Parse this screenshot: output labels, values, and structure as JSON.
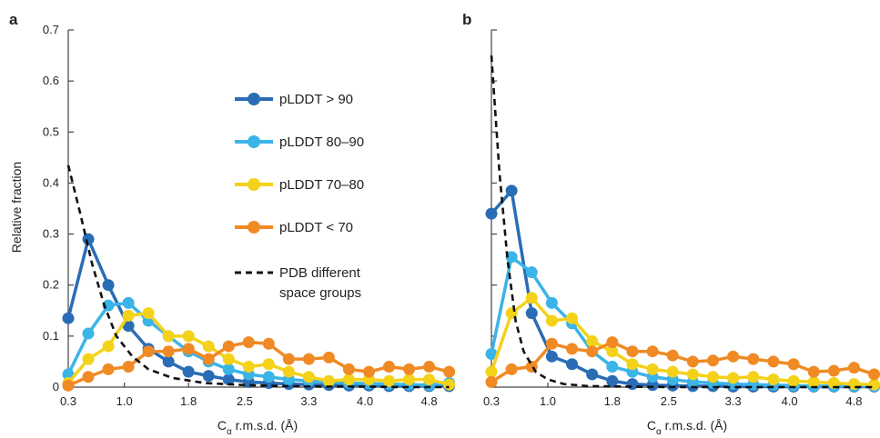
{
  "colors": {
    "series": [
      "#2a6db5",
      "#3bb4e8",
      "#f4d21a",
      "#f08a24"
    ],
    "reference": "#111111",
    "axis": "#444444"
  },
  "legend": {
    "entries": [
      "pLDDT > 90",
      "pLDDT 80–90",
      "pLDDT 70–80",
      "pLDDT < 70"
    ],
    "reference_line1": "PDB different",
    "reference_line2": "space groups"
  },
  "chart_data": [
    {
      "type": "line",
      "panel": "a",
      "xlabel_main": "C",
      "xlabel_sub": "α",
      "xlabel_rest": " r.m.s.d. (Å)",
      "ylabel": "Relative fraction",
      "xlim": [
        0.3,
        5.1
      ],
      "ylim": [
        0,
        0.7
      ],
      "xticks": [
        0.3,
        1.0,
        1.8,
        2.5,
        3.3,
        4.0,
        4.8
      ],
      "xtick_labels": [
        "0.3",
        "1.0",
        "1.8",
        "2.5",
        "3.3",
        "4.0",
        "4.8"
      ],
      "yticks": [
        0,
        0.1,
        0.2,
        0.3,
        0.4,
        0.5,
        0.6,
        0.7
      ],
      "ytick_labels": [
        "0",
        "0.1",
        "0.2",
        "0.3",
        "0.4",
        "0.5",
        "0.6",
        "0.7"
      ],
      "x": [
        0.3,
        0.55,
        0.8,
        1.05,
        1.3,
        1.55,
        1.8,
        2.05,
        2.3,
        2.55,
        2.8,
        3.05,
        3.3,
        3.55,
        3.8,
        4.05,
        4.3,
        4.55,
        4.8,
        5.05
      ],
      "series": [
        {
          "name": "pLDDT > 90",
          "values": [
            0.135,
            0.29,
            0.2,
            0.12,
            0.075,
            0.05,
            0.03,
            0.022,
            0.015,
            0.01,
            0.008,
            0.006,
            0.005,
            0.004,
            0.003,
            0.003,
            0.002,
            0.002,
            0.002,
            0.002
          ]
        },
        {
          "name": "pLDDT 80–90",
          "values": [
            0.025,
            0.105,
            0.16,
            0.165,
            0.13,
            0.1,
            0.07,
            0.05,
            0.035,
            0.025,
            0.02,
            0.015,
            0.012,
            0.01,
            0.008,
            0.007,
            0.006,
            0.005,
            0.004,
            0.008
          ]
        },
        {
          "name": "pLDDT 70–80",
          "values": [
            0.008,
            0.055,
            0.08,
            0.14,
            0.145,
            0.1,
            0.1,
            0.08,
            0.055,
            0.04,
            0.045,
            0.03,
            0.02,
            0.012,
            0.015,
            0.015,
            0.012,
            0.015,
            0.015,
            0.005
          ]
        },
        {
          "name": "pLDDT < 70",
          "values": [
            0.003,
            0.02,
            0.035,
            0.04,
            0.07,
            0.07,
            0.075,
            0.055,
            0.08,
            0.088,
            0.085,
            0.055,
            0.055,
            0.058,
            0.035,
            0.03,
            0.04,
            0.035,
            0.04,
            0.03
          ]
        }
      ],
      "reference": {
        "name": "PDB different space groups",
        "x": [
          0.3,
          0.45,
          0.6,
          0.75,
          0.9,
          1.1,
          1.3,
          1.6,
          2.0,
          2.5,
          3.0,
          3.5,
          4.0,
          4.5,
          5.05
        ],
        "values": [
          0.435,
          0.34,
          0.24,
          0.16,
          0.1,
          0.06,
          0.035,
          0.018,
          0.008,
          0.004,
          0.002,
          0.001,
          0.001,
          0.0,
          0.0
        ]
      }
    },
    {
      "type": "line",
      "panel": "b",
      "xlabel_main": "C",
      "xlabel_sub": "α",
      "xlabel_rest": " r.m.s.d. (Å)",
      "ylabel": "",
      "xlim": [
        0.3,
        5.1
      ],
      "ylim": [
        0,
        0.7
      ],
      "xticks": [
        0.3,
        1.0,
        1.8,
        2.5,
        3.3,
        4.0,
        4.8
      ],
      "xtick_labels": [
        "0.3",
        "1.0",
        "1.8",
        "2.5",
        "3.3",
        "4.0",
        "4.8"
      ],
      "yticks": [
        0,
        0.1,
        0.2,
        0.3,
        0.4,
        0.5,
        0.6,
        0.7
      ],
      "ytick_labels": [],
      "x": [
        0.3,
        0.55,
        0.8,
        1.05,
        1.3,
        1.55,
        1.8,
        2.05,
        2.3,
        2.55,
        2.8,
        3.05,
        3.3,
        3.55,
        3.8,
        4.05,
        4.3,
        4.55,
        4.8,
        5.05
      ],
      "series": [
        {
          "name": "pLDDT > 90",
          "values": [
            0.34,
            0.385,
            0.145,
            0.06,
            0.045,
            0.025,
            0.012,
            0.006,
            0.004,
            0.003,
            0.002,
            0.002,
            0.001,
            0.001,
            0.001,
            0.001,
            0.001,
            0.001,
            0.001,
            0.001
          ]
        },
        {
          "name": "pLDDT 80–90",
          "values": [
            0.065,
            0.255,
            0.225,
            0.165,
            0.125,
            0.07,
            0.04,
            0.03,
            0.02,
            0.015,
            0.01,
            0.008,
            0.006,
            0.005,
            0.004,
            0.003,
            0.002,
            0.002,
            0.002,
            0.002
          ]
        },
        {
          "name": "pLDDT 70–80",
          "values": [
            0.03,
            0.145,
            0.175,
            0.13,
            0.135,
            0.09,
            0.07,
            0.045,
            0.035,
            0.03,
            0.025,
            0.02,
            0.018,
            0.02,
            0.015,
            0.012,
            0.01,
            0.008,
            0.006,
            0.005
          ]
        },
        {
          "name": "pLDDT < 70",
          "values": [
            0.01,
            0.035,
            0.04,
            0.085,
            0.075,
            0.07,
            0.088,
            0.07,
            0.07,
            0.062,
            0.05,
            0.052,
            0.06,
            0.055,
            0.05,
            0.045,
            0.03,
            0.032,
            0.038,
            0.025
          ]
        }
      ],
      "reference": {
        "name": "PDB different space groups",
        "x": [
          0.3,
          0.4,
          0.5,
          0.6,
          0.7,
          0.85,
          1.0,
          1.2,
          1.5,
          2.0,
          2.5,
          3.0,
          4.0,
          5.05
        ],
        "values": [
          0.65,
          0.42,
          0.25,
          0.13,
          0.07,
          0.03,
          0.015,
          0.006,
          0.002,
          0.001,
          0.0,
          0.0,
          0.0,
          0.0
        ]
      }
    }
  ]
}
